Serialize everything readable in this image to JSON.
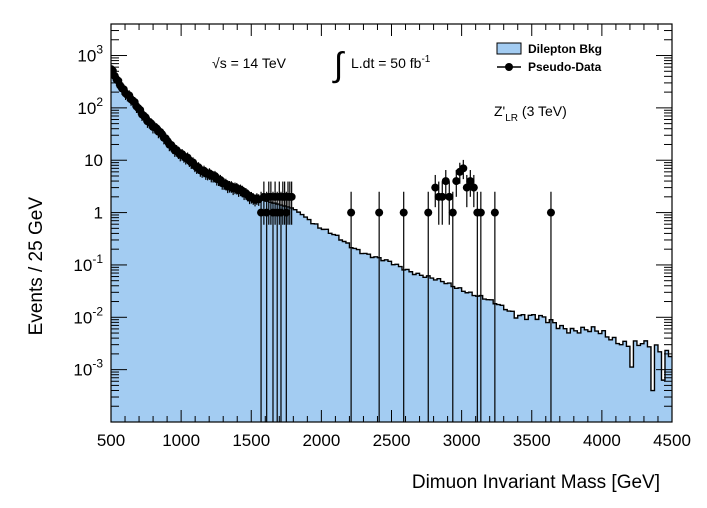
{
  "chart_data": {
    "type": "histogram_with_points",
    "xlabel": "Dimuon Invariant Mass [GeV]",
    "ylabel": "Events / 25 GeV",
    "xlim": [
      500,
      4500
    ],
    "ylim": [
      0.0001,
      4000
    ],
    "y_scale": "log",
    "x_ticks": [
      500,
      1000,
      1500,
      2000,
      2500,
      3000,
      3500,
      4000,
      4500
    ],
    "x_tick_labels": [
      "500",
      "1000",
      "1500",
      "2000",
      "2500",
      "3000",
      "3500",
      "4000",
      "4500"
    ],
    "y_ticks": [
      0.001,
      0.01,
      0.1,
      1,
      10,
      100,
      1000
    ],
    "y_tick_labels": [
      {
        "base": "10",
        "exp": "-3"
      },
      {
        "base": "10",
        "exp": "-2"
      },
      {
        "base": "10",
        "exp": "-1"
      },
      {
        "base": "1",
        "exp": ""
      },
      {
        "base": "10",
        "exp": ""
      },
      {
        "base": "10",
        "exp": "2"
      },
      {
        "base": "10",
        "exp": "3"
      }
    ],
    "annotations": {
      "energy": {
        "sqrt": "√",
        "s_text": "s = 14 TeV"
      },
      "lumi": {
        "integral": "∫",
        "text": "L.dt = 50 fb",
        "exp": "-1"
      },
      "signal": {
        "main": "Z'",
        "sub": "LR",
        "rest": " (3 TeV)"
      }
    },
    "legend": {
      "placement": "top-right",
      "entries": [
        {
          "label": "Dilepton Bkg",
          "kind": "fill"
        },
        {
          "label": "Pseudo-Data",
          "kind": "marker"
        }
      ]
    },
    "colors": {
      "fill": "#a3ccf2",
      "line": "#000000",
      "marker": "#000000"
    },
    "background": {
      "name": "Dilepton Bkg",
      "bin_width": 25,
      "x_start": 500,
      "knots_x": [
        500,
        600,
        800,
        1000,
        1200,
        1500,
        1800,
        2000,
        2200,
        2400,
        2600,
        2800,
        3000,
        3200,
        3400,
        3600,
        3800,
        4000,
        4200,
        4400,
        4500
      ],
      "knots_log10y": [
        2.75,
        2.3,
        1.65,
        1.1,
        0.72,
        0.3,
        0.08,
        -0.3,
        -0.62,
        -0.88,
        -1.07,
        -1.28,
        -1.45,
        -1.7,
        -1.92,
        -2.08,
        -2.22,
        -2.32,
        -2.5,
        -2.6,
        -2.65
      ],
      "low_bins": [
        [
          4200,
          -2.95
        ],
        [
          4350,
          -3.4
        ],
        [
          4425,
          -3.2
        ]
      ]
    },
    "pseudo_data": {
      "name": "Pseudo-Data",
      "dense_region": {
        "x_from": 500,
        "x_to": 1560,
        "step": 13,
        "follows": "background",
        "error_frac": 0.25
      },
      "points": [
        {
          "x": 1570,
          "y": 1
        },
        {
          "x": 1590,
          "y": 2
        },
        {
          "x": 1610,
          "y": 1
        },
        {
          "x": 1625,
          "y": 2
        },
        {
          "x": 1640,
          "y": 2
        },
        {
          "x": 1655,
          "y": 1
        },
        {
          "x": 1670,
          "y": 2
        },
        {
          "x": 1685,
          "y": 1
        },
        {
          "x": 1700,
          "y": 2
        },
        {
          "x": 1712,
          "y": 1
        },
        {
          "x": 1725,
          "y": 2
        },
        {
          "x": 1738,
          "y": 2
        },
        {
          "x": 1750,
          "y": 1
        },
        {
          "x": 1762,
          "y": 2
        },
        {
          "x": 1775,
          "y": 2
        },
        {
          "x": 1788,
          "y": 2
        },
        {
          "x": 2212,
          "y": 1
        },
        {
          "x": 2412,
          "y": 1
        },
        {
          "x": 2587,
          "y": 1
        },
        {
          "x": 2762,
          "y": 1
        },
        {
          "x": 2812,
          "y": 3
        },
        {
          "x": 2837,
          "y": 2
        },
        {
          "x": 2862,
          "y": 2
        },
        {
          "x": 2887,
          "y": 4
        },
        {
          "x": 2912,
          "y": 2
        },
        {
          "x": 2937,
          "y": 1
        },
        {
          "x": 2962,
          "y": 4
        },
        {
          "x": 2987,
          "y": 6
        },
        {
          "x": 3012,
          "y": 7
        },
        {
          "x": 3037,
          "y": 3
        },
        {
          "x": 3062,
          "y": 4
        },
        {
          "x": 3087,
          "y": 3
        },
        {
          "x": 3112,
          "y": 1
        },
        {
          "x": 3137,
          "y": 1
        },
        {
          "x": 3237,
          "y": 1
        },
        {
          "x": 3637,
          "y": 1
        }
      ]
    }
  }
}
